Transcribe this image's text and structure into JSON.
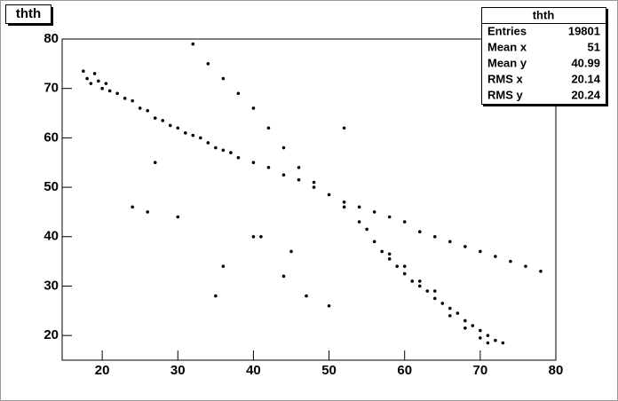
{
  "chart_data": {
    "type": "scatter",
    "title": "thth",
    "xlim": [
      14.7,
      80
    ],
    "ylim": [
      15,
      80
    ],
    "xticks": [
      20,
      30,
      40,
      50,
      60,
      70,
      80
    ],
    "yticks": [
      20,
      30,
      40,
      50,
      60,
      70,
      80
    ],
    "color": "#000000",
    "x": [
      17.5,
      18,
      18.5,
      19,
      19.5,
      20,
      20.5,
      21,
      22,
      23,
      24,
      25,
      26,
      27,
      28,
      29,
      30,
      31,
      32,
      33,
      34,
      35,
      36,
      37,
      38,
      40,
      42,
      44,
      46,
      48,
      50,
      52,
      54,
      55,
      56,
      57,
      58,
      59,
      60,
      61,
      62,
      63,
      64,
      65,
      66,
      67,
      68,
      69,
      70,
      71,
      72,
      73,
      62,
      64,
      66,
      68,
      70,
      71,
      60,
      58,
      32,
      34,
      36,
      38,
      40,
      42,
      44,
      46,
      48,
      52,
      54,
      56,
      58,
      60,
      62,
      64,
      66,
      68,
      70,
      72,
      74,
      76,
      78,
      24,
      26,
      27,
      30,
      36,
      40,
      41,
      44,
      47,
      50,
      35,
      45,
      52
    ],
    "y": [
      73.5,
      72,
      71,
      73,
      71.5,
      70,
      71,
      69.5,
      69,
      68,
      67.5,
      66,
      65.5,
      64,
      63.5,
      62.5,
      62,
      61,
      60.5,
      60,
      59,
      58,
      57.5,
      57,
      56,
      55,
      54,
      52.5,
      51.5,
      50,
      48.5,
      46,
      43,
      41.5,
      39,
      37,
      35.5,
      34,
      32.5,
      31,
      30,
      29,
      27.5,
      26.5,
      25.5,
      24.5,
      23,
      22,
      21,
      20,
      19,
      18.5,
      31,
      29,
      24,
      21.5,
      19.5,
      18.5,
      34,
      36.5,
      79,
      75,
      72,
      69,
      66,
      62,
      58,
      54,
      51,
      47,
      46,
      45,
      44,
      43,
      41,
      40,
      39,
      38,
      37,
      36,
      35,
      34,
      33,
      46,
      45,
      55,
      44,
      34,
      40,
      40,
      32,
      28,
      26,
      28,
      37,
      62
    ],
    "stats": {
      "title": "thth",
      "rows": [
        {
          "label": "Entries",
          "value": 19801
        },
        {
          "label": "Mean x",
          "value": 51
        },
        {
          "label": "Mean y",
          "value": 40.99
        },
        {
          "label": "RMS x",
          "value": 20.14
        },
        {
          "label": "RMS y",
          "value": 20.24
        }
      ]
    }
  }
}
